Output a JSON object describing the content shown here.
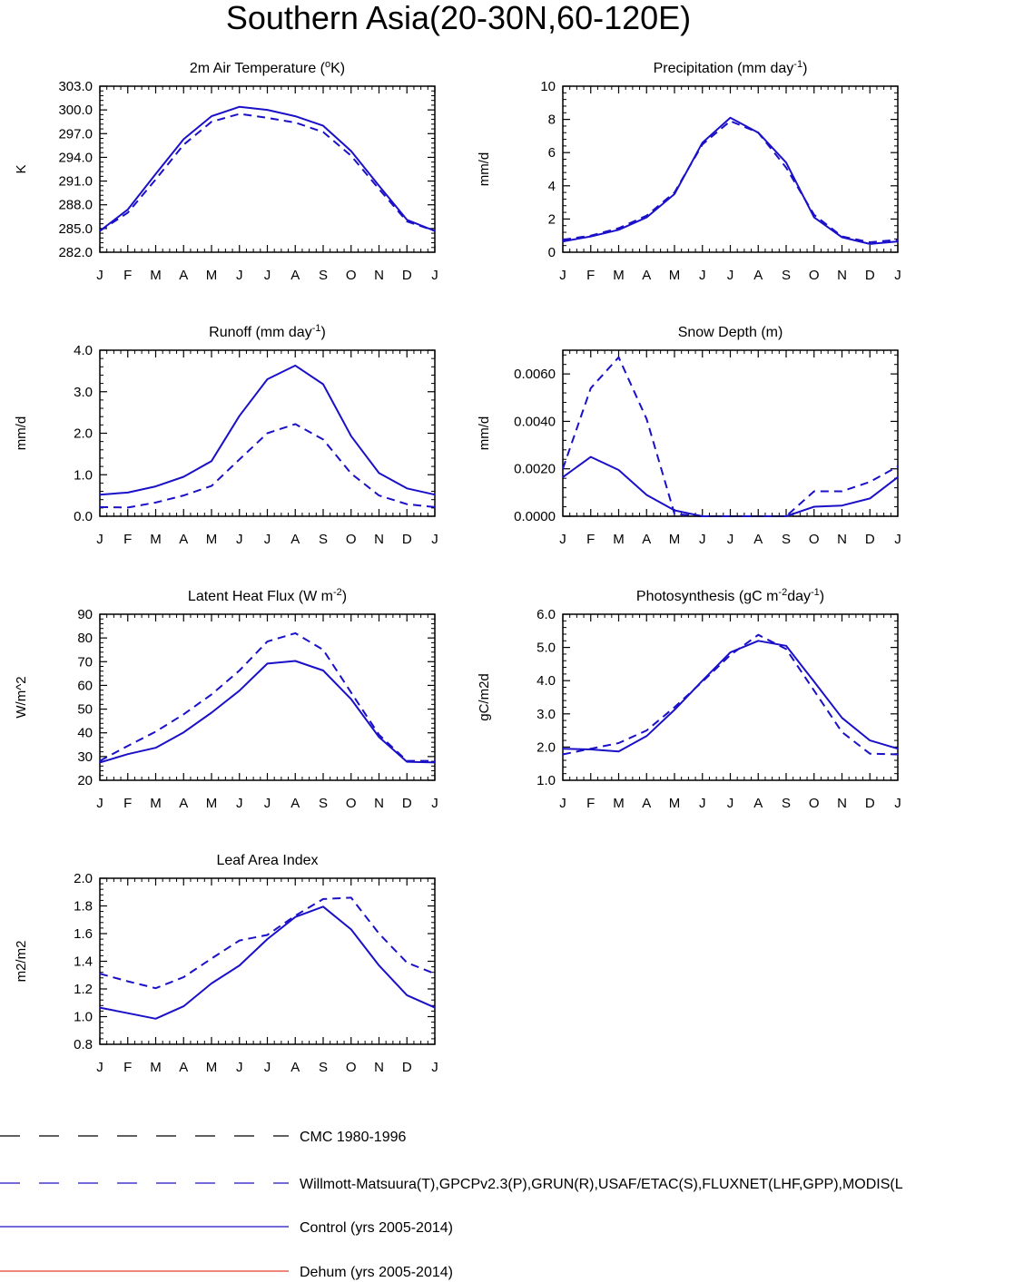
{
  "title": "Southern Asia(20-30N,60-120E)",
  "colors": {
    "frame": "#000000",
    "model": "#1a10c8",
    "cmc": "#000000",
    "dehum": "#e8402a"
  },
  "months": [
    "J",
    "F",
    "M",
    "A",
    "M",
    "J",
    "J",
    "A",
    "S",
    "O",
    "N",
    "D",
    "J"
  ],
  "chart_data": [
    {
      "type": "line",
      "title": "2m Air Temperature (",
      "title_sup": "o",
      "title_end": "K)",
      "ylabel": "K",
      "ylim": [
        282,
        303
      ],
      "yticks": [
        282,
        285,
        288,
        291,
        294,
        297,
        300,
        303
      ],
      "ytick_labels": [
        "282.0",
        "285.0",
        "288.0",
        "291.0",
        "294.0",
        "297.0",
        "300.0",
        "303.0"
      ],
      "series": [
        {
          "name": "Control (yrs 2005-2014)",
          "style": "solid",
          "values": [
            284.7,
            287.4,
            291.9,
            296.3,
            299.2,
            300.4,
            300.0,
            299.2,
            298.0,
            294.8,
            290.4,
            286.1,
            284.7
          ]
        },
        {
          "name": "Willmott-Matsuura(T),GPCPv2.3(P),GRUN(R),USAF/ETAC(S),FLUXNET(LHF,GPP),MODIS(L",
          "style": "dashed",
          "values": [
            284.7,
            287.0,
            291.2,
            295.6,
            298.5,
            299.5,
            299.0,
            298.4,
            297.2,
            294.2,
            290.0,
            285.9,
            284.7
          ]
        }
      ]
    },
    {
      "type": "line",
      "title": "Precipitation (mm day",
      "title_sup": "-1",
      "title_end": ")",
      "ylabel": "mm/d",
      "ylim": [
        0,
        10
      ],
      "yticks": [
        0,
        2,
        4,
        6,
        8,
        10
      ],
      "ytick_labels": [
        "0",
        "2",
        "4",
        "6",
        "8",
        "10"
      ],
      "series": [
        {
          "name": "Control (yrs 2005-2014)",
          "style": "solid",
          "values": [
            0.65,
            0.95,
            1.35,
            2.1,
            3.5,
            6.6,
            8.1,
            7.2,
            5.4,
            2.1,
            0.9,
            0.5,
            0.65
          ]
        },
        {
          "name": "Willmott-Matsuura(T),GPCPv2.3(P),GRUN(R),USAF/ETAC(S),FLUXNET(LHF,GPP),MODIS(L",
          "style": "dashed",
          "values": [
            0.75,
            1.0,
            1.45,
            2.2,
            3.6,
            6.5,
            7.9,
            7.2,
            5.1,
            2.25,
            0.95,
            0.6,
            0.75
          ]
        }
      ]
    },
    {
      "type": "line",
      "title": "Runoff (mm day",
      "title_sup": "-1",
      "title_end": ")",
      "ylabel": "mm/d",
      "ylim": [
        0,
        4
      ],
      "yticks": [
        0,
        1,
        2,
        3,
        4
      ],
      "ytick_labels": [
        "0.0",
        "1.0",
        "2.0",
        "3.0",
        "4.0"
      ],
      "series": [
        {
          "name": "Control (yrs 2005-2014)",
          "style": "solid",
          "values": [
            0.52,
            0.57,
            0.72,
            0.95,
            1.33,
            2.42,
            3.3,
            3.63,
            3.18,
            1.93,
            1.04,
            0.67,
            0.52
          ]
        },
        {
          "name": "Willmott-Matsuura(T),GPCPv2.3(P),GRUN(R),USAF/ETAC(S),FLUXNET(LHF,GPP),MODIS(L",
          "style": "dashed",
          "values": [
            0.22,
            0.21,
            0.33,
            0.5,
            0.73,
            1.37,
            2.0,
            2.22,
            1.85,
            1.03,
            0.5,
            0.29,
            0.22
          ]
        }
      ]
    },
    {
      "type": "line",
      "title": "Snow Depth (m)",
      "title_sup": "",
      "title_end": "",
      "ylabel": "mm/d",
      "ylim": [
        0,
        0.007
      ],
      "yticks": [
        0,
        0.002,
        0.004,
        0.006
      ],
      "ytick_labels": [
        "0.0000",
        "0.0020",
        "0.0040",
        "0.0060"
      ],
      "series": [
        {
          "name": "Control (yrs 2005-2014)",
          "style": "solid",
          "values": [
            0.00165,
            0.0025,
            0.00195,
            0.0009,
            0.00025,
            0.0,
            0.0,
            0.0,
            0.0,
            0.0004,
            0.00045,
            0.00075,
            0.00165
          ]
        },
        {
          "name": "Willmott-Matsuura(T),GPCPv2.3(P),GRUN(R),USAF/ETAC(S),FLUXNET(LHF,GPP),MODIS(L",
          "style": "dashed",
          "values": [
            0.002,
            0.0054,
            0.0067,
            0.0041,
            0.0001,
            0.0,
            0.0,
            0.0,
            0.0,
            0.00105,
            0.00105,
            0.00145,
            0.0021
          ]
        },
        {
          "name": "CMC 1980-1996",
          "style": "longdash",
          "values": [
            0.0,
            0.0,
            0.0,
            0.0,
            0.0,
            0.0,
            0.0,
            0.0,
            0.0,
            0.0,
            0.0,
            0.0,
            0.0
          ]
        }
      ]
    },
    {
      "type": "line",
      "title": "Latent Heat Flux (W m",
      "title_sup": "-2",
      "title_end": ")",
      "ylabel": "W/m^2",
      "ylim": [
        20,
        90
      ],
      "yticks": [
        20,
        30,
        40,
        50,
        60,
        70,
        80,
        90
      ],
      "ytick_labels": [
        "20",
        "30",
        "40",
        "50",
        "60",
        "70",
        "80",
        "90"
      ],
      "series": [
        {
          "name": "Control (yrs 2005-2014)",
          "style": "solid",
          "values": [
            27.5,
            31.0,
            33.7,
            40.2,
            48.5,
            57.8,
            69.2,
            70.3,
            66.3,
            54.2,
            38.2,
            27.8,
            27.5
          ]
        },
        {
          "name": "Willmott-Matsuura(T),GPCPv2.3(P),GRUN(R),USAF/ETAC(S),FLUXNET(LHF,GPP),MODIS(L",
          "style": "dashed",
          "values": [
            28.2,
            34.5,
            40.5,
            47.8,
            56.2,
            66.3,
            78.5,
            82.0,
            75.0,
            57.0,
            39.2,
            28.2,
            28.2
          ]
        }
      ]
    },
    {
      "type": "line",
      "title": "Photosynthesis (gC m",
      "title_sup": "-2",
      "title_mid": "day",
      "title_sup2": "-1",
      "title_end": ")",
      "ylabel": "gC/m2d",
      "ylim": [
        1,
        6
      ],
      "yticks": [
        1,
        2,
        3,
        4,
        5,
        6
      ],
      "ytick_labels": [
        "1.0",
        "2.0",
        "3.0",
        "4.0",
        "5.0",
        "6.0"
      ],
      "series": [
        {
          "name": "Control (yrs 2005-2014)",
          "style": "solid",
          "values": [
            1.95,
            1.93,
            1.87,
            2.33,
            3.12,
            4.0,
            4.85,
            5.2,
            5.05,
            3.97,
            2.88,
            2.2,
            1.95
          ]
        },
        {
          "name": "Willmott-Matsuura(T),GPCPv2.3(P),GRUN(R),USAF/ETAC(S),FLUXNET(LHF,GPP),MODIS(L",
          "style": "dashed",
          "values": [
            1.78,
            1.95,
            2.12,
            2.5,
            3.2,
            3.97,
            4.77,
            5.38,
            4.95,
            3.7,
            2.45,
            1.8,
            1.78
          ]
        }
      ]
    },
    {
      "type": "line",
      "title": "Leaf Area Index",
      "title_sup": "",
      "title_end": "",
      "ylabel": "m2/m2",
      "ylim": [
        0.8,
        2.0
      ],
      "yticks": [
        0.8,
        1.0,
        1.2,
        1.4,
        1.6,
        1.8,
        2.0
      ],
      "ytick_labels": [
        "0.8",
        "1.0",
        "1.2",
        "1.4",
        "1.6",
        "1.8",
        "2.0"
      ],
      "series": [
        {
          "name": "Control (yrs 2005-2014)",
          "style": "solid",
          "values": [
            1.065,
            1.025,
            0.985,
            1.075,
            1.24,
            1.37,
            1.56,
            1.72,
            1.795,
            1.63,
            1.37,
            1.155,
            1.065
          ]
        },
        {
          "name": "Willmott-Matsuura(T),GPCPv2.3(P),GRUN(R),USAF/ETAC(S),FLUXNET(LHF,GPP),MODIS(L",
          "style": "dashed",
          "values": [
            1.31,
            1.255,
            1.205,
            1.285,
            1.42,
            1.55,
            1.59,
            1.73,
            1.85,
            1.86,
            1.6,
            1.39,
            1.31
          ]
        }
      ]
    }
  ],
  "legend": [
    {
      "label": "CMC 1980-1996",
      "style": "longdash",
      "color": "#000000"
    },
    {
      "label": "Willmott-Matsuura(T),GPCPv2.3(P),GRUN(R),USAF/ETAC(S),FLUXNET(LHF,GPP),MODIS(L",
      "style": "longdash",
      "color": "#1a10c8"
    },
    {
      "label": "Control (yrs 2005-2014)",
      "style": "solid",
      "color": "#1a10c8"
    },
    {
      "label": "Dehum (yrs 2005-2014)",
      "style": "solid",
      "color": "#e8402a"
    }
  ]
}
